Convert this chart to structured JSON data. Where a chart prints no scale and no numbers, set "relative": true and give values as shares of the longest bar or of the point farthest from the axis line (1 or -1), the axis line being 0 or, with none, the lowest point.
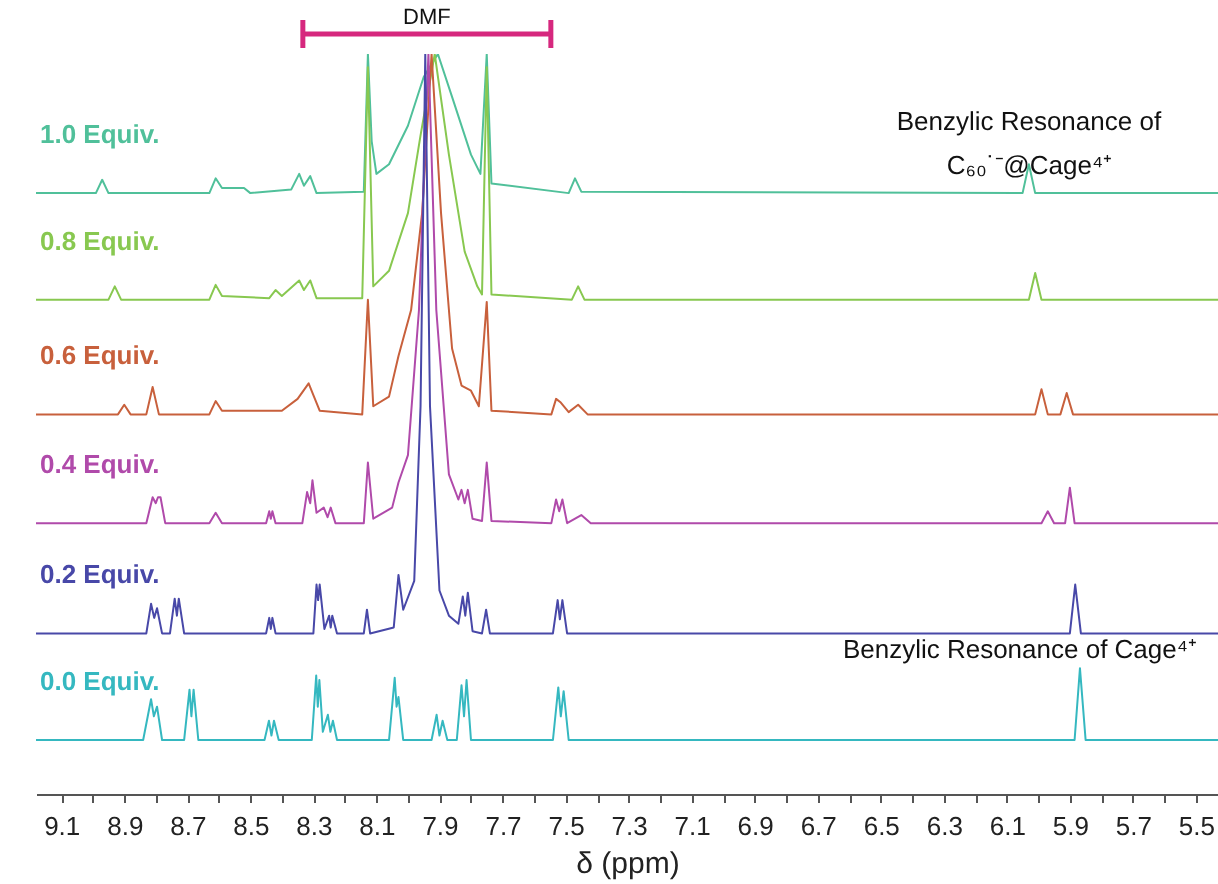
{
  "chart_data": {
    "type": "line",
    "relative": true,
    "xlabel": "δ (ppm)",
    "grid": false,
    "legend": false,
    "xlim": [
      9.18,
      5.43
    ],
    "xticks": [
      9.1,
      {
        "value": 9.0,
        "label": null
      },
      8.9,
      {
        "value": 8.8,
        "label": null
      },
      8.7,
      {
        "value": 8.6,
        "label": null
      },
      8.5,
      {
        "value": 8.4,
        "label": null
      },
      8.3,
      {
        "value": 8.2,
        "label": null
      },
      8.1,
      {
        "value": 8.0,
        "label": null
      },
      7.9,
      {
        "value": 7.8,
        "label": null
      },
      7.7,
      {
        "value": 7.6,
        "label": null
      },
      7.5,
      {
        "value": 7.4,
        "label": null
      },
      7.3,
      {
        "value": 7.2,
        "label": null
      },
      7.1,
      {
        "value": 7.0,
        "label": null
      },
      6.9,
      {
        "value": 6.8,
        "label": null
      },
      6.7,
      {
        "value": 6.6,
        "label": null
      },
      6.5,
      {
        "value": 6.4,
        "label": null
      },
      6.3,
      {
        "value": 6.2,
        "label": null
      },
      6.1,
      {
        "value": 6.0,
        "label": null
      },
      5.9,
      {
        "value": 5.8,
        "label": null
      },
      5.7,
      {
        "value": 5.6,
        "label": null
      },
      5.5
    ],
    "annotations": [
      {
        "text": "Benzylic Resonance of\nC₆₀˙⁻@Cage⁴⁺",
        "x": 6.03,
        "y": 0.851
      },
      {
        "text": "Benzylic Resonance of Cage⁴⁺",
        "x": 5.868,
        "y": 0.17
      },
      {
        "text": "DMF",
        "x": 7.94,
        "y": 1
      }
    ],
    "series": [
      {
        "name": "1.0 Equiv.",
        "color": "#50c09a",
        "x": [
          9.18,
          8.99,
          8.97,
          8.95,
          8.63,
          8.61,
          8.59,
          8.52,
          8.5,
          8.37,
          8.345,
          8.33,
          8.31,
          8.29,
          8.14,
          8.127,
          8.115,
          8.1,
          8.06,
          8.0,
          7.95,
          7.905,
          7.86,
          7.8,
          7.77,
          7.75,
          7.735,
          7.49,
          7.47,
          7.45,
          6.05,
          6.03,
          6.01,
          5.43
        ],
        "values": [
          0.812,
          0.812,
          0.83,
          0.812,
          0.812,
          0.832,
          0.819,
          0.819,
          0.812,
          0.817,
          0.838,
          0.822,
          0.835,
          0.812,
          0.814,
          1,
          0.882,
          0.838,
          0.851,
          0.903,
          0.969,
          1,
          0.942,
          0.864,
          0.838,
          1,
          0.825,
          0.812,
          0.832,
          0.814,
          0.812,
          0.851,
          0.812,
          0.812
        ]
      },
      {
        "name": "0.8 Equiv.",
        "color": "#88c850",
        "x": [
          9.18,
          8.95,
          8.93,
          8.91,
          8.63,
          8.61,
          8.59,
          8.44,
          8.42,
          8.4,
          8.345,
          8.33,
          8.31,
          8.29,
          8.145,
          8.127,
          8.11,
          8.06,
          8.0,
          7.96,
          7.915,
          7.87,
          7.82,
          7.78,
          7.765,
          7.75,
          7.735,
          7.48,
          7.46,
          7.44,
          6.03,
          6.01,
          5.99,
          5.43
        ],
        "values": [
          0.668,
          0.668,
          0.686,
          0.668,
          0.668,
          0.688,
          0.673,
          0.67,
          0.681,
          0.673,
          0.694,
          0.681,
          0.694,
          0.67,
          0.67,
          0.982,
          0.686,
          0.707,
          0.785,
          0.89,
          1,
          0.864,
          0.733,
          0.686,
          0.675,
          0.982,
          0.675,
          0.668,
          0.686,
          0.668,
          0.668,
          0.704,
          0.668,
          0.668
        ]
      },
      {
        "name": "0.6 Equiv.",
        "color": "#c8603c",
        "x": [
          9.18,
          8.92,
          8.9,
          8.88,
          8.83,
          8.81,
          8.79,
          8.63,
          8.61,
          8.59,
          8.4,
          8.35,
          8.315,
          8.3,
          8.28,
          8.145,
          8.127,
          8.11,
          8.06,
          8.03,
          7.99,
          7.955,
          7.925,
          7.895,
          7.86,
          7.83,
          7.8,
          7.775,
          7.75,
          7.735,
          7.545,
          7.53,
          7.515,
          7.49,
          7.46,
          7.43,
          6.01,
          5.99,
          5.97,
          5.93,
          5.91,
          5.89,
          5.43
        ],
        "values": [
          0.513,
          0.513,
          0.526,
          0.513,
          0.513,
          0.55,
          0.513,
          0.513,
          0.531,
          0.518,
          0.518,
          0.534,
          0.555,
          0.539,
          0.518,
          0.513,
          0.668,
          0.524,
          0.537,
          0.592,
          0.654,
          0.785,
          1,
          0.785,
          0.602,
          0.552,
          0.545,
          0.524,
          0.665,
          0.518,
          0.513,
          0.534,
          0.529,
          0.516,
          0.526,
          0.513,
          0.513,
          0.547,
          0.513,
          0.513,
          0.542,
          0.513,
          0.513
        ]
      },
      {
        "name": "0.4 Equiv.",
        "color": "#b04aaa",
        "x": [
          9.18,
          8.83,
          8.81,
          8.8,
          8.793,
          8.785,
          8.77,
          8.63,
          8.61,
          8.59,
          8.45,
          8.44,
          8.435,
          8.43,
          8.42,
          8.335,
          8.32,
          8.31,
          8.303,
          8.29,
          8.267,
          8.255,
          8.245,
          8.23,
          8.14,
          8.127,
          8.11,
          8.05,
          8.03,
          8.0,
          7.965,
          7.935,
          7.91,
          7.87,
          7.84,
          7.83,
          7.82,
          7.81,
          7.795,
          7.765,
          7.75,
          7.735,
          7.545,
          7.53,
          7.52,
          7.51,
          7.495,
          7.45,
          7.42,
          5.99,
          5.97,
          5.95,
          5.915,
          5.9,
          5.885,
          5.43
        ],
        "values": [
          0.366,
          0.366,
          0.401,
          0.393,
          0.401,
          0.401,
          0.366,
          0.366,
          0.38,
          0.366,
          0.366,
          0.382,
          0.372,
          0.382,
          0.366,
          0.366,
          0.408,
          0.393,
          0.424,
          0.38,
          0.387,
          0.374,
          0.387,
          0.366,
          0.366,
          0.448,
          0.372,
          0.387,
          0.421,
          0.458,
          0.654,
          1,
          0.654,
          0.432,
          0.398,
          0.411,
          0.393,
          0.411,
          0.372,
          0.369,
          0.448,
          0.369,
          0.366,
          0.398,
          0.382,
          0.398,
          0.366,
          0.377,
          0.366,
          0.366,
          0.382,
          0.366,
          0.366,
          0.414,
          0.366,
          0.366
        ]
      },
      {
        "name": "0.2 Equiv.",
        "color": "#4848a8",
        "x": [
          9.18,
          8.83,
          8.815,
          8.805,
          8.796,
          8.78,
          8.755,
          8.74,
          8.733,
          8.727,
          8.71,
          8.45,
          8.44,
          8.435,
          8.43,
          8.42,
          8.3,
          8.29,
          8.285,
          8.28,
          8.265,
          8.25,
          8.245,
          8.24,
          8.225,
          8.14,
          8.13,
          8.12,
          8.045,
          8.03,
          8.015,
          7.98,
          7.96,
          7.945,
          7.93,
          7.9,
          7.87,
          7.84,
          7.826,
          7.818,
          7.81,
          7.795,
          7.765,
          7.752,
          7.74,
          7.54,
          7.525,
          7.518,
          7.51,
          7.495,
          5.9,
          5.883,
          5.865,
          5.43
        ],
        "values": [
          0.217,
          0.217,
          0.257,
          0.238,
          0.251,
          0.217,
          0.217,
          0.264,
          0.241,
          0.264,
          0.217,
          0.217,
          0.238,
          0.223,
          0.238,
          0.217,
          0.217,
          0.283,
          0.262,
          0.283,
          0.223,
          0.241,
          0.225,
          0.241,
          0.217,
          0.217,
          0.249,
          0.217,
          0.225,
          0.296,
          0.249,
          0.288,
          0.524,
          1,
          0.524,
          0.275,
          0.241,
          0.23,
          0.267,
          0.241,
          0.272,
          0.22,
          0.217,
          0.249,
          0.217,
          0.217,
          0.262,
          0.236,
          0.262,
          0.217,
          0.217,
          0.283,
          0.217,
          0.217
        ]
      },
      {
        "name": "0.0 Equiv.",
        "color": "#35b8c0",
        "x": [
          9.18,
          8.84,
          8.815,
          8.806,
          8.796,
          8.78,
          8.71,
          8.693,
          8.687,
          8.68,
          8.665,
          8.455,
          8.441,
          8.433,
          8.425,
          8.41,
          8.305,
          8.291,
          8.286,
          8.281,
          8.27,
          8.254,
          8.246,
          8.238,
          8.225,
          8.06,
          8.042,
          8.036,
          8.03,
          8.015,
          7.925,
          7.909,
          7.9,
          7.89,
          7.875,
          7.845,
          7.83,
          7.822,
          7.814,
          7.8,
          7.54,
          7.523,
          7.515,
          7.506,
          7.49,
          5.885,
          5.868,
          5.85,
          5.43
        ],
        "values": [
          0.073,
          0.073,
          0.128,
          0.105,
          0.118,
          0.073,
          0.073,
          0.141,
          0.105,
          0.141,
          0.073,
          0.073,
          0.099,
          0.079,
          0.099,
          0.073,
          0.073,
          0.16,
          0.118,
          0.154,
          0.084,
          0.107,
          0.084,
          0.099,
          0.073,
          0.073,
          0.157,
          0.118,
          0.131,
          0.073,
          0.073,
          0.107,
          0.079,
          0.099,
          0.073,
          0.073,
          0.147,
          0.105,
          0.154,
          0.073,
          0.073,
          0.144,
          0.105,
          0.139,
          0.073,
          0.073,
          0.17,
          0.073,
          0.073
        ]
      }
    ]
  }
}
